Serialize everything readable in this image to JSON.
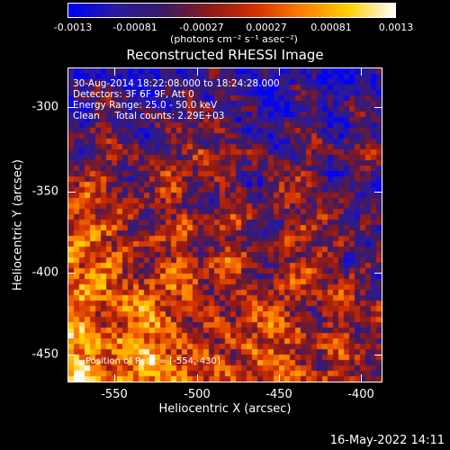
{
  "colorbar": {
    "tick_labels": [
      "-0.0013",
      "-0.00081",
      "-0.00027",
      "0.00027",
      "0.00081",
      "0.0013"
    ],
    "unit_label": "(photons cm⁻² s⁻¹ asec⁻²)",
    "colors": [
      "#0000ff",
      "#2a1aa0",
      "#3a1a6a",
      "#8a1a1a",
      "#d43000",
      "#ff8000",
      "#ffd000",
      "#ffffff"
    ]
  },
  "title": "Reconstructed RHESSI Image",
  "annotation": {
    "line1": "30-Aug-2014 18:22:08.000 to 18:24:28.000",
    "line2": "Detectors: 3F 6F 9F, Att 0",
    "line3": "Energy Range: 25.0 - 50.0 keV",
    "line4": "Clean     Total counts: 2.29E+03"
  },
  "peak_label": "Position of Peak = [-554,-430]",
  "axes": {
    "xlabel": "Heliocentric X (arcsec)",
    "ylabel": "Heliocentric Y (arcsec)",
    "xticks": [
      "-550",
      "-500",
      "-450",
      "-400"
    ],
    "yticks": [
      "-300",
      "-350",
      "-400",
      "-450"
    ],
    "xlim": [
      -575,
      -385
    ],
    "ylim": [
      -470,
      -280
    ]
  },
  "footer": "16-May-2022 14:11"
}
